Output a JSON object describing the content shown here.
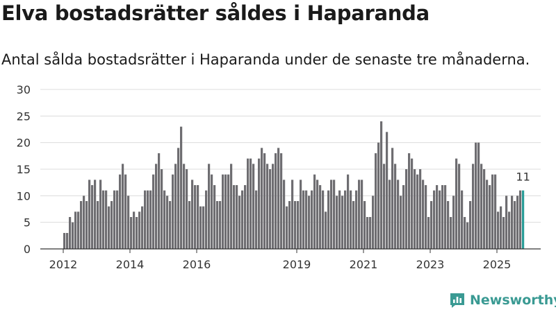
{
  "title": "Elva bostadsrätter såldes i Haparanda",
  "subtitle": "Antal sålda bostadsrätter i Haparanda under de senaste tre månaderna.",
  "brand": "Newsworthy",
  "colors": {
    "bar": "#6e6d71",
    "highlight": "#2a9d98",
    "grid": "#dcdcdc",
    "axis": "#333333",
    "brand": "#3a9a93"
  },
  "chart_data": {
    "type": "bar",
    "title": "Elva bostadsrätter såldes i Haparanda",
    "xlabel": "",
    "ylabel": "",
    "ylim": [
      0,
      30
    ],
    "yticks": [
      0,
      5,
      10,
      15,
      20,
      25,
      30
    ],
    "xticks": [
      {
        "label": "2012",
        "index": 0
      },
      {
        "label": "2014",
        "index": 24
      },
      {
        "label": "2016",
        "index": 48
      },
      {
        "label": "2019",
        "index": 84
      },
      {
        "label": "2021",
        "index": 108
      },
      {
        "label": "2023",
        "index": 132
      },
      {
        "label": "2025",
        "index": 156
      }
    ],
    "series": [
      {
        "name": "Antal sålda bostadsrätter",
        "values": [
          3,
          3,
          6,
          5,
          7,
          7,
          9,
          10,
          9,
          13,
          12,
          13,
          9,
          13,
          11,
          11,
          8,
          9,
          11,
          11,
          14,
          16,
          14,
          10,
          6,
          7,
          6,
          7,
          8,
          11,
          11,
          11,
          14,
          16,
          18,
          15,
          11,
          10,
          9,
          14,
          16,
          19,
          23,
          16,
          15,
          9,
          13,
          12,
          12,
          8,
          8,
          11,
          16,
          14,
          12,
          9,
          9,
          14,
          14,
          14,
          16,
          12,
          12,
          10,
          11,
          12,
          17,
          17,
          16,
          11,
          17,
          19,
          18,
          16,
          15,
          16,
          18,
          19,
          18,
          13,
          8,
          9,
          13,
          9,
          9,
          13,
          11,
          11,
          10,
          11,
          14,
          13,
          12,
          11,
          7,
          11,
          13,
          13,
          10,
          11,
          10,
          11,
          14,
          11,
          9,
          11,
          13,
          13,
          9,
          6,
          6,
          10,
          18,
          20,
          24,
          16,
          22,
          13,
          19,
          16,
          13,
          10,
          12,
          15,
          18,
          17,
          15,
          14,
          15,
          13,
          12,
          6,
          9,
          11,
          12,
          11,
          12,
          12,
          9,
          6,
          10,
          17,
          16,
          11,
          6,
          5,
          9,
          16,
          20,
          20,
          16,
          15,
          13,
          12,
          14,
          14,
          7,
          8,
          6,
          10,
          7,
          10,
          9,
          10,
          11,
          11
        ],
        "last_label": "11"
      }
    ]
  }
}
